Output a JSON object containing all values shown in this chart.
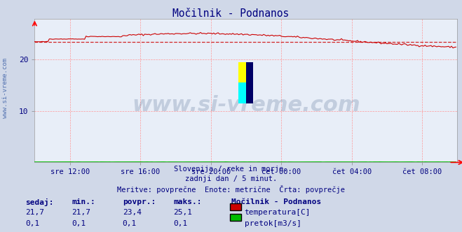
{
  "title": "Močilnik - Podnanos",
  "title_color": "#000080",
  "bg_color": "#d0d8e8",
  "plot_bg_color": "#e8eef8",
  "grid_color": "#ff9999",
  "xlim": [
    0,
    288
  ],
  "ylim": [
    0,
    28
  ],
  "yticks": [
    10,
    20
  ],
  "ytick_labels": [
    "10",
    "20"
  ],
  "xtick_positions": [
    24,
    72,
    120,
    168,
    216,
    264
  ],
  "xtick_labels": [
    "sre 12:00",
    "sre 16:00",
    "sre 20:00",
    "čet 00:00",
    "čet 04:00",
    "čet 08:00"
  ],
  "temp_color": "#cc0000",
  "flow_color": "#00bb00",
  "avg_value": 23.4,
  "temp_min": 21.7,
  "temp_max": 25.1,
  "temp_avg": 23.4,
  "temp_current": 21.7,
  "flow_current": 0.1,
  "subtitle1": "Slovenija / reke in morje.",
  "subtitle2": "zadnji dan / 5 minut.",
  "subtitle3": "Meritve: povprečne  Enote: metrične  Črta: povprečje",
  "subtitle_color": "#000080",
  "legend_title": "Močilnik - Podnanos",
  "legend_temp": "temperatura[C]",
  "legend_flow": "pretok[m3/s]",
  "table_headers": [
    "sedaj:",
    "min.:",
    "povpr.:",
    "maks.:"
  ],
  "table_temp": [
    "21,7",
    "21,7",
    "23,4",
    "25,1"
  ],
  "table_flow": [
    "0,1",
    "0,1",
    "0,1",
    "0,1"
  ],
  "watermark": "www.si-vreme.com",
  "watermark_color": "#1a3a6a",
  "left_label": "www.si-vreme.com"
}
